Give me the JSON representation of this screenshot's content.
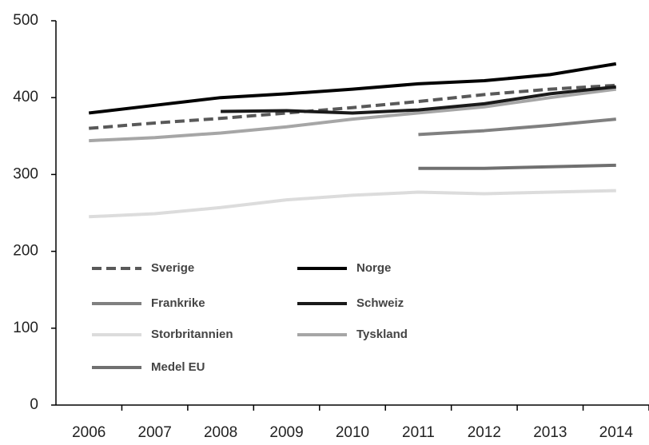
{
  "chart_data": {
    "type": "line",
    "categories": [
      "2006",
      "2007",
      "2008",
      "2009",
      "2010",
      "2011",
      "2012",
      "2013",
      "2014"
    ],
    "ylim": [
      0,
      500
    ],
    "yticks": [
      0,
      100,
      200,
      300,
      400,
      500
    ],
    "grid": false,
    "series": [
      {
        "name": "Sverige",
        "color": "#595959",
        "dashed": true,
        "values": [
          360,
          367,
          373,
          380,
          387,
          395,
          404,
          411,
          416
        ]
      },
      {
        "name": "Norge",
        "color": "#000000",
        "values": [
          380,
          390,
          400,
          405,
          411,
          418,
          422,
          430,
          444
        ]
      },
      {
        "name": "Frankrike",
        "color": "#808080",
        "values": [
          null,
          null,
          null,
          null,
          null,
          352,
          357,
          364,
          372
        ]
      },
      {
        "name": "Schweiz",
        "color": "#1a1a1a",
        "values": [
          null,
          null,
          382,
          383,
          380,
          384,
          392,
          405,
          414
        ]
      },
      {
        "name": "Storbritannien",
        "color": "#dcdcdc",
        "values": [
          245,
          249,
          257,
          267,
          273,
          277,
          275,
          277,
          279
        ]
      },
      {
        "name": "Tyskland",
        "color": "#a6a6a6",
        "values": [
          344,
          348,
          354,
          362,
          372,
          380,
          388,
          400,
          411
        ]
      },
      {
        "name": "Medel EU",
        "color": "#707070",
        "values": [
          null,
          null,
          null,
          null,
          null,
          308,
          308,
          310,
          312
        ]
      }
    ]
  }
}
